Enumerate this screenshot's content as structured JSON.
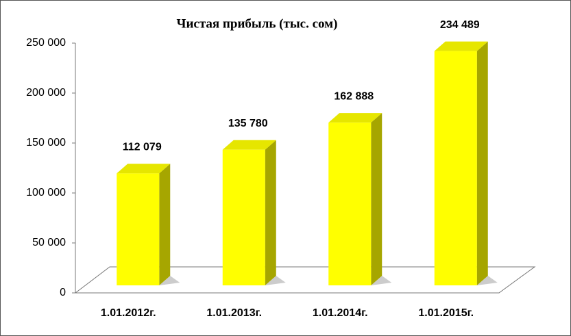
{
  "chart_data": {
    "type": "bar3d",
    "title": "Чистая прибыль (тыс. сом)",
    "categories": [
      "1.01.2012г.",
      "1.01.2013г.",
      "1.01.2014г.",
      "1.01.2015г."
    ],
    "values": [
      112079,
      135780,
      162888,
      234489
    ],
    "value_labels": [
      "112 079",
      "135 780",
      "162 888",
      "234 489"
    ],
    "color": "#ffff00",
    "ylim": [
      0,
      250000
    ],
    "yticks": [
      0,
      {
        "value": 50000,
        "label": "50 000"
      },
      {
        "value": 100000,
        "label": "100 000"
      },
      {
        "value": 150000,
        "label": "150 000"
      },
      {
        "value": 200000,
        "label": "200 000"
      },
      {
        "value": 250000,
        "label": "250 000"
      }
    ]
  }
}
